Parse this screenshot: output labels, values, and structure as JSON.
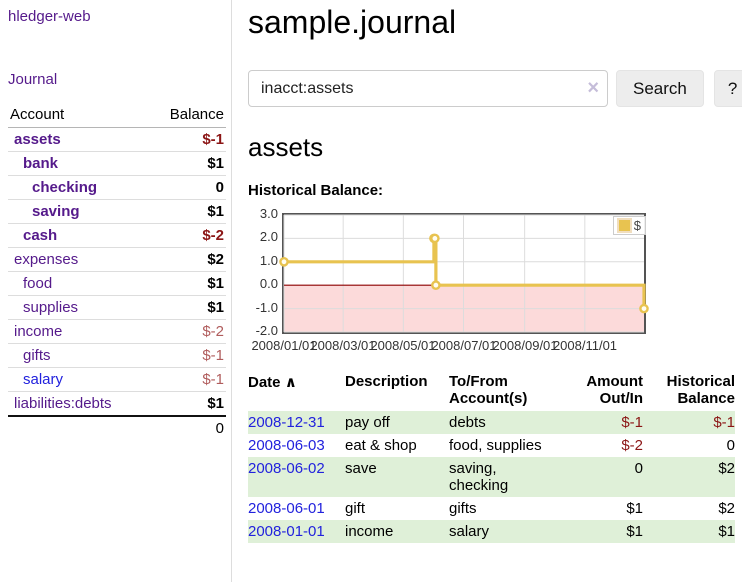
{
  "app": {
    "brand": "hledger-web"
  },
  "colors": {
    "link_purple": "#551a8b",
    "link_blue": "#2222dd",
    "negative_strong": "#8b1515",
    "negative_muted": "#b05c5c",
    "row_stripe_green": "#dff0d8",
    "chart_line_gold": "#e8c350",
    "chart_marker_fill": "#fffdf2",
    "chart_negative_fill": "#fcdada",
    "chart_zero_line": "#8b0000",
    "chart_border": "#545454",
    "chart_grid": "#dcdcdc"
  },
  "sidebar": {
    "journal_link": "Journal",
    "accounts_table": {
      "col_account": "Account",
      "col_balance": "Balance",
      "rows": [
        {
          "account": "assets",
          "level": 0,
          "bold": true,
          "balance": "$-1",
          "balance_style": "neg-strong",
          "balance_bold": true,
          "link_style": "purple"
        },
        {
          "account": "bank",
          "level": 1,
          "bold": true,
          "balance": "$1",
          "balance_style": "pos",
          "balance_bold": true,
          "link_style": "purple"
        },
        {
          "account": "checking",
          "level": 2,
          "bold": true,
          "balance": "0",
          "balance_style": "pos",
          "balance_bold": true,
          "link_style": "purple"
        },
        {
          "account": "saving",
          "level": 2,
          "bold": true,
          "balance": "$1",
          "balance_style": "pos",
          "balance_bold": true,
          "link_style": "purple"
        },
        {
          "account": "cash",
          "level": 1,
          "bold": true,
          "balance": "$-2",
          "balance_style": "neg-strong",
          "balance_bold": true,
          "link_style": "purple"
        },
        {
          "account": "expenses",
          "level": 0,
          "bold": false,
          "balance": "$2",
          "balance_style": "pos",
          "balance_bold": true,
          "link_style": "purple"
        },
        {
          "account": "food",
          "level": 1,
          "bold": false,
          "balance": "$1",
          "balance_style": "pos",
          "balance_bold": true,
          "link_style": "purple"
        },
        {
          "account": "supplies",
          "level": 1,
          "bold": false,
          "balance": "$1",
          "balance_style": "pos",
          "balance_bold": true,
          "link_style": "purple"
        },
        {
          "account": "income",
          "level": 0,
          "bold": false,
          "balance": "$-2",
          "balance_style": "neg-muted",
          "balance_bold": false,
          "link_style": "purple"
        },
        {
          "account": "gifts",
          "level": 1,
          "bold": false,
          "balance": "$-1",
          "balance_style": "neg-muted",
          "balance_bold": false,
          "link_style": "purple"
        },
        {
          "account": "salary",
          "level": 1,
          "bold": false,
          "balance": "$-1",
          "balance_style": "neg-muted",
          "balance_bold": false,
          "link_style": "blue"
        },
        {
          "account": "liabilities:debts",
          "level": 0,
          "bold": false,
          "balance": "$1",
          "balance_style": "pos",
          "balance_bold": true,
          "link_style": "purple"
        }
      ],
      "total": "0"
    }
  },
  "main": {
    "title": "sample.journal",
    "search": {
      "value": "inacct:assets",
      "clear_icon": "×",
      "search_button": "Search",
      "help_button": "?"
    },
    "account_heading": "assets",
    "chart_title": "Historical Balance:"
  },
  "chart_data": {
    "type": "line",
    "title": "Historical Balance",
    "step": true,
    "series": [
      {
        "name": "$",
        "points": [
          [
            "2008-01-01",
            1.0
          ],
          [
            "2008-06-01",
            2.0
          ],
          [
            "2008-06-02",
            2.0
          ],
          [
            "2008-06-03",
            0.0
          ],
          [
            "2008-12-31",
            -1.0
          ]
        ]
      }
    ],
    "xlim": [
      "2008-01-01",
      "2008-12-31"
    ],
    "ylim": [
      -2.0,
      3.0
    ],
    "x_ticks": [
      "2008/01/01",
      "2008/03/01",
      "2008/05/01",
      "2008/07/01",
      "2008/09/01",
      "2008/11/01"
    ],
    "y_ticks": [
      3.0,
      2.0,
      1.0,
      0.0,
      -1.0,
      -2.0
    ],
    "legend": {
      "label": "$",
      "position": "top-right"
    },
    "grid": true,
    "negative_region_shaded": true,
    "zero_line": true
  },
  "register_table": {
    "headers": {
      "date": "Date",
      "sort_indicator": "∧",
      "description": "Description",
      "tofrom": "To/From Account(s)",
      "amount": "Amount Out/In",
      "balance": "Historical Balance"
    },
    "rows": [
      {
        "date": "2008-12-31",
        "description": "pay off",
        "accounts": "debts",
        "amount": "$-1",
        "amount_negative": true,
        "balance": "$-1",
        "balance_negative": true,
        "highlight": true
      },
      {
        "date": "2008-06-03",
        "description": "eat & shop",
        "accounts": "food, supplies",
        "amount": "$-2",
        "amount_negative": true,
        "balance": "0",
        "balance_negative": false,
        "highlight": false
      },
      {
        "date": "2008-06-02",
        "description": "save",
        "accounts": "saving, checking",
        "amount": "0",
        "amount_negative": false,
        "balance": "$2",
        "balance_negative": false,
        "highlight": true
      },
      {
        "date": "2008-06-01",
        "description": "gift",
        "accounts": "gifts",
        "amount": "$1",
        "amount_negative": false,
        "balance": "$2",
        "balance_negative": false,
        "highlight": false
      },
      {
        "date": "2008-01-01",
        "description": "income",
        "accounts": "salary",
        "amount": "$1",
        "amount_negative": false,
        "balance": "$1",
        "balance_negative": false,
        "highlight": true
      }
    ]
  }
}
